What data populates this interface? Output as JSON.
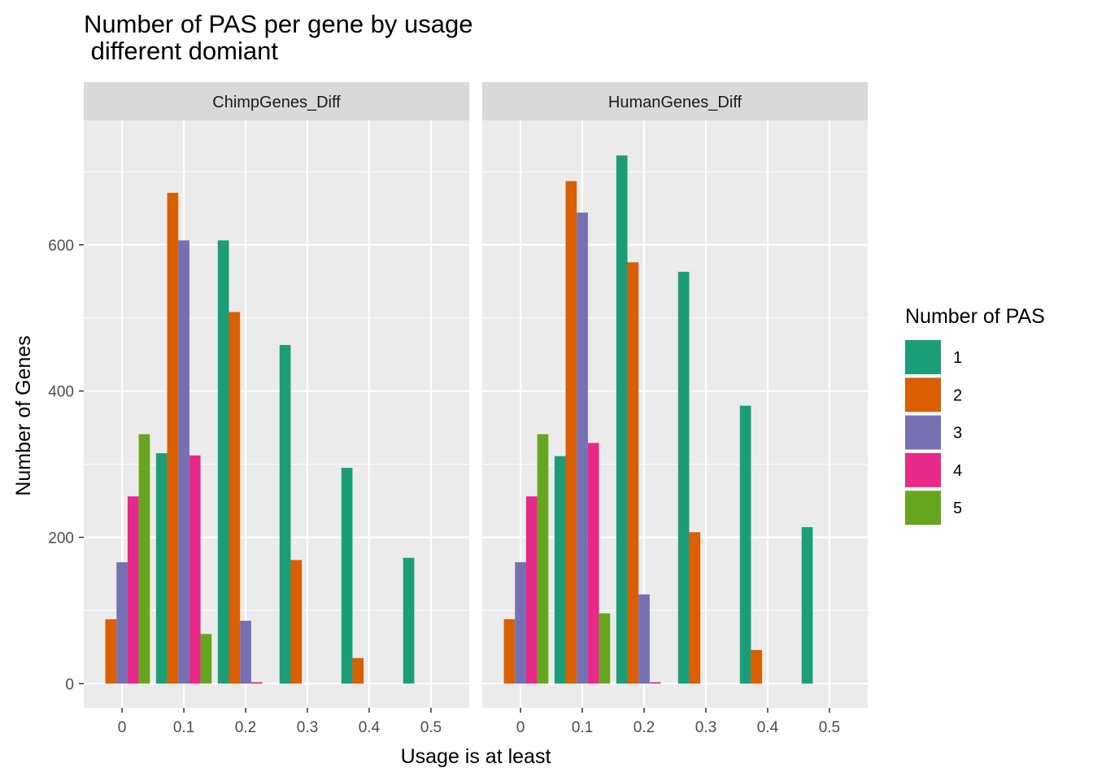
{
  "chart_data": {
    "type": "bar",
    "title": "Number of PAS per gene by usage\n different domiant",
    "xlabel": "Usage is at least",
    "ylabel": "Number of Genes",
    "x_ticks": [
      "0",
      "0.1",
      "0.2",
      "0.3",
      "0.4",
      "0.5"
    ],
    "x_tick_values": [
      0,
      0.1,
      0.2,
      0.3,
      0.4,
      0.5
    ],
    "y_ticks": [
      0,
      200,
      400,
      600
    ],
    "ylim": [
      -33,
      770
    ],
    "xlim": [
      -0.062,
      0.562
    ],
    "grid": true,
    "legend": {
      "title": "Number of PAS",
      "position": "right",
      "entries": [
        {
          "label": "1",
          "color": "#1B9E77"
        },
        {
          "label": "2",
          "color": "#D95F02"
        },
        {
          "label": "3",
          "color": "#7570B3"
        },
        {
          "label": "4",
          "color": "#E7298A"
        },
        {
          "label": "5",
          "color": "#66A61E"
        }
      ]
    },
    "panels": [
      {
        "strip": "ChimpGenes_Diff",
        "series": [
          {
            "name": "1",
            "x": [
              0.1,
              0.2,
              0.3,
              0.4,
              0.5
            ],
            "values": [
              315,
              606,
              463,
              295,
              172
            ]
          },
          {
            "name": "2",
            "x": [
              0,
              0.1,
              0.2,
              0.3,
              0.4
            ],
            "values": [
              88,
              671,
              508,
              169,
              35
            ]
          },
          {
            "name": "3",
            "x": [
              0,
              0.1,
              0.2
            ],
            "values": [
              166,
              606,
              86
            ]
          },
          {
            "name": "4",
            "x": [
              0,
              0.1,
              0.2
            ],
            "values": [
              256,
              312,
              2
            ]
          },
          {
            "name": "5",
            "x": [
              0,
              0.1
            ],
            "values": [
              341,
              68
            ]
          }
        ]
      },
      {
        "strip": "HumanGenes_Diff",
        "series": [
          {
            "name": "1",
            "x": [
              0.1,
              0.2,
              0.3,
              0.4,
              0.5
            ],
            "values": [
              311,
              722,
              563,
              380,
              214
            ]
          },
          {
            "name": "2",
            "x": [
              0,
              0.1,
              0.2,
              0.3,
              0.4
            ],
            "values": [
              88,
              687,
              576,
              207,
              46
            ]
          },
          {
            "name": "3",
            "x": [
              0,
              0.1,
              0.2
            ],
            "values": [
              166,
              644,
              122
            ]
          },
          {
            "name": "4",
            "x": [
              0,
              0.1,
              0.2
            ],
            "values": [
              256,
              329,
              2
            ]
          },
          {
            "name": "5",
            "x": [
              0,
              0.1
            ],
            "values": [
              341,
              96
            ]
          }
        ]
      }
    ]
  }
}
